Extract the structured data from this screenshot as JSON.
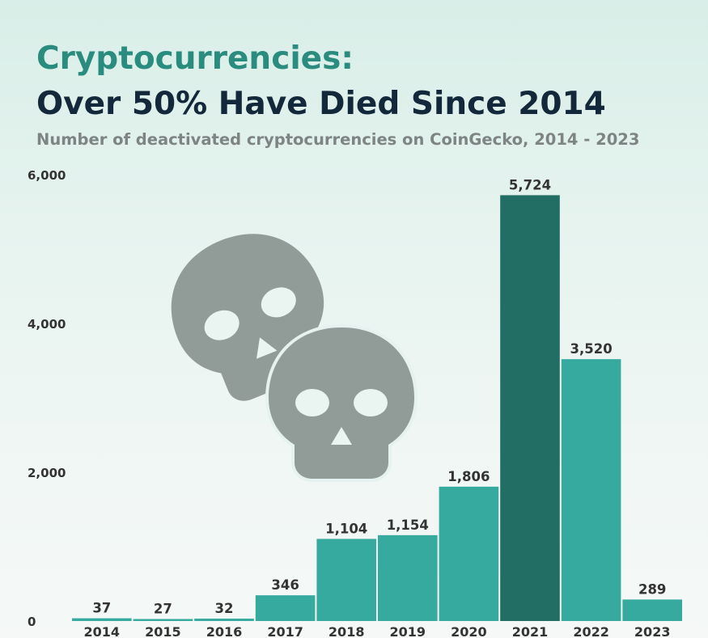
{
  "header": {
    "title_line1": "Cryptocurrencies:",
    "title_line2": "Over 50% Have Died Since 2014",
    "subtitle": "Number of deactivated cryptocurrencies on CoinGecko, 2014 - 2023"
  },
  "colors": {
    "bar": "#37aaa0",
    "highlight_bar": "#226e65",
    "skull": "#919b98",
    "label": "#333333",
    "axis_label": "#333333"
  },
  "decoration": {
    "icons": [
      "skull-icon",
      "skull-icon"
    ]
  },
  "chart_data": {
    "type": "bar",
    "categories": [
      "2014",
      "2015",
      "2016",
      "2017",
      "2018",
      "2019",
      "2020",
      "2021",
      "2022",
      "2023"
    ],
    "values": [
      37,
      27,
      32,
      346,
      1104,
      1154,
      1806,
      5724,
      3520,
      289
    ],
    "value_labels": [
      "37",
      "27",
      "32",
      "346",
      "1,104",
      "1,154",
      "1,806",
      "5,724",
      "3,520",
      "289"
    ],
    "highlight_category": "2021",
    "yticks": [
      0,
      2000,
      4000,
      6000
    ],
    "ytick_labels": [
      "0",
      "2,000",
      "4,000",
      "6,000"
    ],
    "ylim": [
      0,
      6000
    ],
    "grid": false,
    "legend": "none"
  }
}
